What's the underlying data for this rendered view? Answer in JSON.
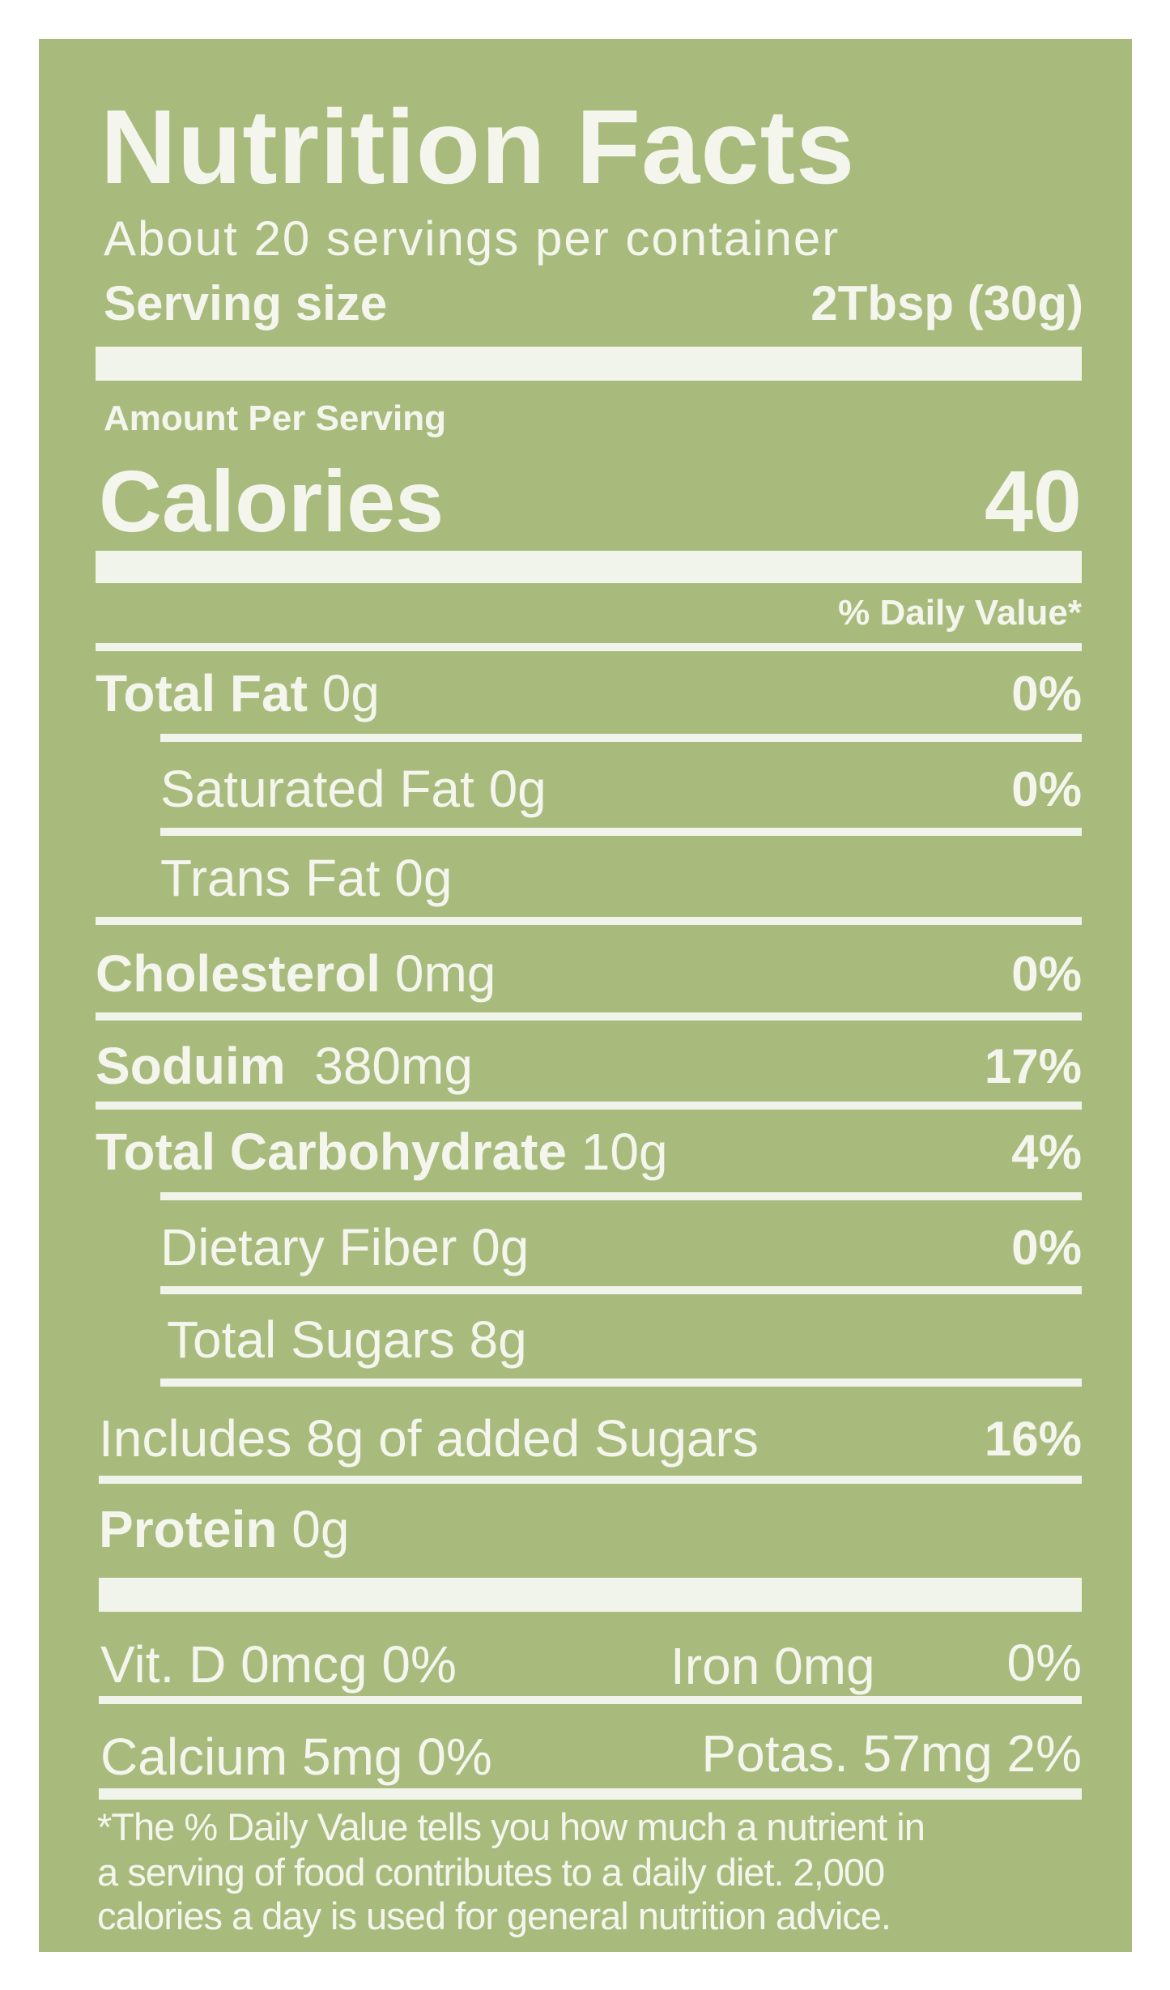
{
  "title": "Nutrition Facts",
  "servings_per_container": "About 20 servings per container",
  "serving_size": {
    "label": "Serving size",
    "value": "2Tbsp (30g)"
  },
  "amount_per_serving": "Amount Per Serving",
  "calories": {
    "label": "Calories",
    "value": "40"
  },
  "daily_value_header": "% Daily Value*",
  "nutrients": [
    {
      "name": "Total Fat",
      "amount": "0g",
      "dv": "0%"
    },
    {
      "name": "Saturated Fat",
      "amount": "0g",
      "dv": "0%"
    },
    {
      "name": "Trans Fat",
      "amount": "0g",
      "dv": ""
    },
    {
      "name": "Cholesterol",
      "amount": "0mg",
      "dv": "0%"
    },
    {
      "name": "Soduim",
      "amount": "380mg",
      "dv": "17%"
    },
    {
      "name": "Total Carbohydrate",
      "amount": "10g",
      "dv": "4%"
    },
    {
      "name": "Dietary Fiber",
      "amount": "0g",
      "dv": "0%"
    },
    {
      "name": "Total Sugars",
      "amount": "8g",
      "dv": ""
    },
    {
      "name": "Includes 8g of added Sugars",
      "amount": "",
      "dv": "16%"
    },
    {
      "name": "Protein",
      "amount": "0g",
      "dv": ""
    }
  ],
  "vitamins": [
    {
      "left": "Vit. D 0mcg 0%",
      "mid": "Iron 0mg",
      "right": "0%"
    },
    {
      "left": "Calcium 5mg 0%",
      "mid": "Potas. 57mg 2%",
      "right": ""
    }
  ],
  "footnote": [
    "*The % Daily Value tells you how much a nutrient in",
    "a serving of food contributes to a daily diet. 2,000",
    "calories a day is used for general nutrition advice."
  ],
  "colors": {
    "background": "#a8bb7d",
    "text": "#f4f6ee"
  }
}
